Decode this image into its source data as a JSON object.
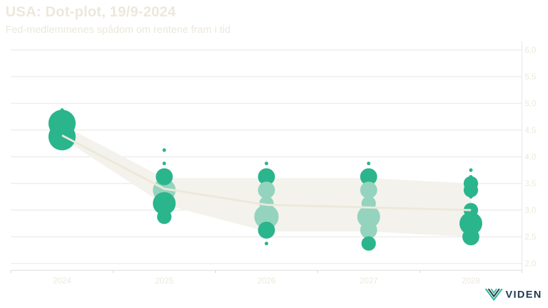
{
  "header": {
    "title": "USA: Dot-plot, 19/9-2024",
    "subtitle": "Fed-medlemmenes spådom om rentene fram i tid"
  },
  "logo": {
    "text": "VIDEN"
  },
  "colors": {
    "dot_dark": "#2bb58c",
    "dot_light": "#94d4bf",
    "band": "#f4f2ec",
    "median_line": "#ece8db",
    "grid": "#e6e6e6",
    "tick_label": "#ece8db",
    "logo": "#1f3b53",
    "logo_mark": "#2bb58c"
  },
  "chart_data": {
    "type": "scatter",
    "categories": [
      "2024",
      "2025",
      "2026",
      "2027",
      "2028"
    ],
    "y_ticks": [
      "6,0",
      "5,5",
      "5,0",
      "4,5",
      "4,0",
      "3,5",
      "3,0",
      "2,5",
      "2,0"
    ],
    "ylim": [
      2.0,
      6.0
    ],
    "y_axis_side": "right",
    "grid": true,
    "median": [
      4.4,
      3.4,
      3.1,
      3.05,
      3.0
    ],
    "band_upper": [
      4.6,
      3.6,
      3.6,
      3.6,
      3.5
    ],
    "band_lower": [
      4.35,
      3.1,
      2.6,
      2.6,
      2.5
    ],
    "dots": [
      {
        "x": "2024",
        "y": 4.875,
        "count": 1,
        "shade": "dark"
      },
      {
        "x": "2024",
        "y": 4.625,
        "count": 9,
        "shade": "dark"
      },
      {
        "x": "2024",
        "y": 4.375,
        "count": 9,
        "shade": "dark"
      },
      {
        "x": "2025",
        "y": 4.125,
        "count": 1,
        "shade": "dark"
      },
      {
        "x": "2025",
        "y": 3.875,
        "count": 1,
        "shade": "dark"
      },
      {
        "x": "2025",
        "y": 3.625,
        "count": 3,
        "shade": "dark"
      },
      {
        "x": "2025",
        "y": 3.375,
        "count": 6,
        "shade": "light"
      },
      {
        "x": "2025",
        "y": 3.125,
        "count": 6,
        "shade": "dark"
      },
      {
        "x": "2025",
        "y": 2.875,
        "count": 2,
        "shade": "dark"
      },
      {
        "x": "2026",
        "y": 3.875,
        "count": 1,
        "shade": "dark"
      },
      {
        "x": "2026",
        "y": 3.625,
        "count": 3,
        "shade": "dark"
      },
      {
        "x": "2026",
        "y": 3.375,
        "count": 3,
        "shade": "light"
      },
      {
        "x": "2026",
        "y": 3.125,
        "count": 2,
        "shade": "light"
      },
      {
        "x": "2026",
        "y": 2.875,
        "count": 7,
        "shade": "light"
      },
      {
        "x": "2026",
        "y": 2.625,
        "count": 3,
        "shade": "dark"
      },
      {
        "x": "2026",
        "y": 2.375,
        "count": 1,
        "shade": "dark"
      },
      {
        "x": "2027",
        "y": 3.875,
        "count": 1,
        "shade": "dark"
      },
      {
        "x": "2027",
        "y": 3.625,
        "count": 3,
        "shade": "dark"
      },
      {
        "x": "2027",
        "y": 3.375,
        "count": 3,
        "shade": "light"
      },
      {
        "x": "2027",
        "y": 3.125,
        "count": 2,
        "shade": "light"
      },
      {
        "x": "2027",
        "y": 2.875,
        "count": 6,
        "shade": "light"
      },
      {
        "x": "2027",
        "y": 2.625,
        "count": 3,
        "shade": "light"
      },
      {
        "x": "2027",
        "y": 2.375,
        "count": 2,
        "shade": "dark"
      },
      {
        "x": "2028",
        "y": 3.75,
        "count": 1,
        "shade": "dark"
      },
      {
        "x": "2028",
        "y": 3.625,
        "count": 1,
        "shade": "dark"
      },
      {
        "x": "2028",
        "y": 3.5,
        "count": 2,
        "shade": "dark"
      },
      {
        "x": "2028",
        "y": 3.375,
        "count": 2,
        "shade": "dark"
      },
      {
        "x": "2028",
        "y": 3.25,
        "count": 1,
        "shade": "dark"
      },
      {
        "x": "2028",
        "y": 3.0,
        "count": 2,
        "shade": "dark"
      },
      {
        "x": "2028",
        "y": 2.75,
        "count": 6,
        "shade": "dark"
      },
      {
        "x": "2028",
        "y": 2.5,
        "count": 3,
        "shade": "dark"
      },
      {
        "x": "2028",
        "y": 2.375,
        "count": 1,
        "shade": "dark"
      }
    ]
  }
}
